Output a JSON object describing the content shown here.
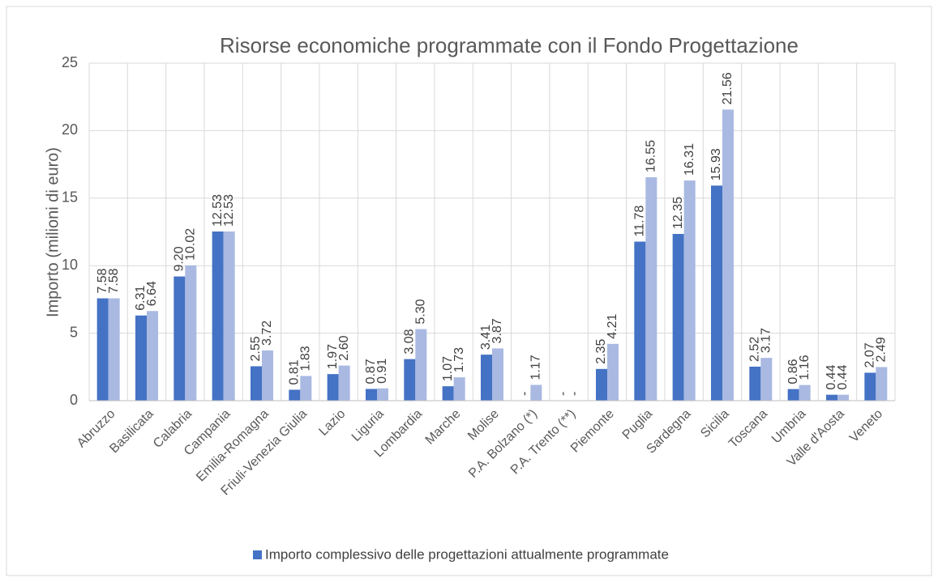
{
  "chart_data": {
    "type": "bar",
    "title": "Risorse economiche programmate con il Fondo Progettazione",
    "y_label": "Importo (milioni di euro)",
    "categories": [
      "Abruzzo",
      "Basilicata",
      "Calabria",
      "Campania",
      "Emilia-Romagna",
      "Friuli-Venezia Giulia",
      "Lazio",
      "Liguria",
      "Lombardia",
      "Marche",
      "Molise",
      "P.A. Bolzano (*)",
      "P.A. Trento (**)",
      "Piemonte",
      "Puglia",
      "Sardegna",
      "Sicilia",
      "Toscana",
      "Umbria",
      "Valle d'Aosta",
      "Veneto"
    ],
    "series": [
      {
        "name": "Importo complessivo delle progettazioni attualmente programmate",
        "color": "#4472c4",
        "values": [
          7.58,
          6.31,
          9.2,
          12.53,
          2.55,
          0.81,
          1.97,
          0.87,
          3.08,
          1.07,
          3.41,
          0,
          0,
          2.35,
          11.78,
          12.35,
          15.93,
          2.52,
          0.86,
          0.44,
          2.07
        ],
        "value_labels": [
          "7.58",
          "6.31",
          "9.20",
          "12.53",
          "2.55",
          "0.81",
          "1.97",
          "0.87",
          "3.08",
          "1.07",
          "3.41",
          "-",
          "-",
          "2.35",
          "11.78",
          "12.35",
          "15.93",
          "2.52",
          "0.86",
          "0.44",
          "2.07"
        ]
      },
      {
        "color": "#a9b9e2",
        "values": [
          7.58,
          6.64,
          10.02,
          12.53,
          3.72,
          1.83,
          2.6,
          0.91,
          5.3,
          1.73,
          3.87,
          1.17,
          0,
          4.21,
          16.55,
          16.31,
          21.56,
          3.17,
          1.16,
          0.44,
          2.49
        ],
        "value_labels": [
          "7.58",
          "6.64",
          "10.02",
          "12.53",
          "3.72",
          "1.83",
          "2.60",
          "0.91",
          "5.30",
          "1.73",
          "3.87",
          "1.17",
          "-",
          "4.21",
          "16.55",
          "16.31",
          "21.56",
          "3.17",
          "1.16",
          "0.44",
          "2.49"
        ]
      }
    ],
    "ylim": [
      0,
      25
    ],
    "yticks": [
      0,
      5,
      10,
      15,
      20,
      25
    ],
    "grid": true,
    "legend": "bottom"
  }
}
